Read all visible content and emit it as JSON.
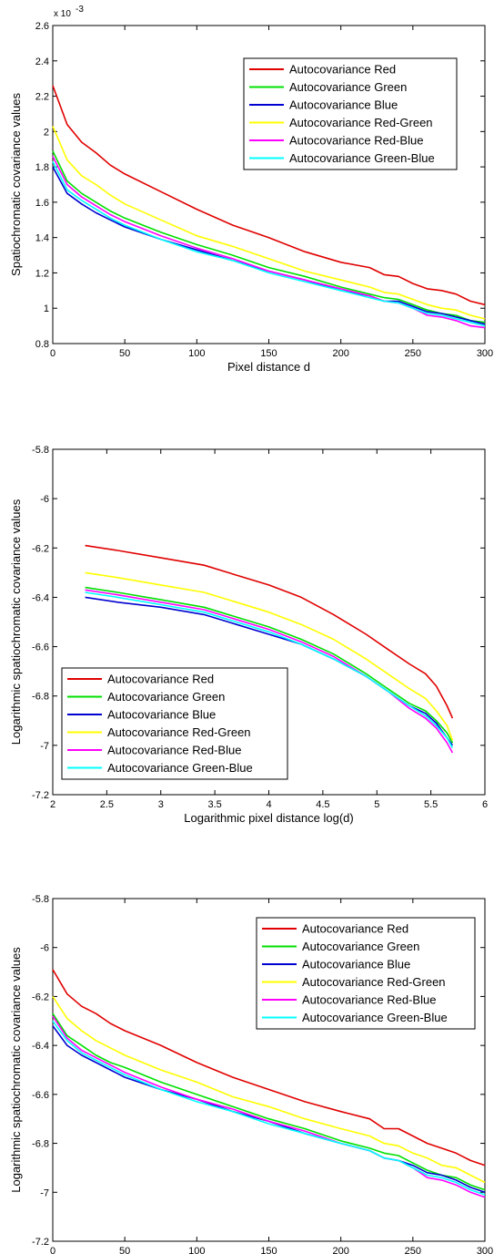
{
  "colors": {
    "Autocovariance Red": "#e00000",
    "Autocovariance Green": "#00e000",
    "Autocovariance Blue": "#0000d0",
    "Autocovariance Red-Green": "#ffff00",
    "Autocovariance Red-Blue": "#ff00ff",
    "Autocovariance Green-Blue": "#00ffff"
  },
  "chart_data": [
    {
      "type": "line",
      "xlabel": "Pixel distance d",
      "ylabel": "Spatiochromatic covariance values",
      "y_exponent_label": "x 10",
      "y_exponent_power": "-3",
      "xlim": [
        0,
        300
      ],
      "ylim": [
        0.8,
        2.6
      ],
      "xticks": [
        "0",
        "50",
        "100",
        "150",
        "200",
        "250",
        "300"
      ],
      "yticks": [
        "0.8",
        "1",
        "1.2",
        "1.4",
        "1.6",
        "1.8",
        "2",
        "2.2",
        "2.4",
        "2.6"
      ],
      "legend_position": "top-right",
      "x": [
        0,
        10,
        20,
        30,
        40,
        50,
        75,
        100,
        125,
        150,
        175,
        200,
        220,
        230,
        240,
        250,
        260,
        270,
        280,
        290,
        300
      ],
      "series": [
        {
          "name": "Autocovariance Red",
          "values": [
            2.26,
            2.04,
            1.94,
            1.88,
            1.81,
            1.76,
            1.66,
            1.56,
            1.47,
            1.4,
            1.32,
            1.26,
            1.23,
            1.19,
            1.18,
            1.14,
            1.11,
            1.1,
            1.08,
            1.04,
            1.02
          ]
        },
        {
          "name": "Autocovariance Green",
          "values": [
            1.89,
            1.72,
            1.65,
            1.6,
            1.55,
            1.51,
            1.43,
            1.36,
            1.3,
            1.23,
            1.18,
            1.12,
            1.08,
            1.06,
            1.05,
            1.02,
            0.99,
            0.97,
            0.96,
            0.93,
            0.92
          ]
        },
        {
          "name": "Autocovariance Blue",
          "values": [
            1.8,
            1.65,
            1.59,
            1.54,
            1.5,
            1.46,
            1.39,
            1.33,
            1.27,
            1.21,
            1.16,
            1.1,
            1.07,
            1.04,
            1.04,
            1.01,
            0.98,
            0.97,
            0.95,
            0.93,
            0.91
          ]
        },
        {
          "name": "Autocovariance Red-Green",
          "values": [
            2.03,
            1.84,
            1.75,
            1.7,
            1.64,
            1.59,
            1.5,
            1.41,
            1.35,
            1.28,
            1.21,
            1.16,
            1.12,
            1.09,
            1.08,
            1.05,
            1.02,
            1.0,
            0.99,
            0.96,
            0.94
          ]
        },
        {
          "name": "Autocovariance Red-Blue",
          "values": [
            1.86,
            1.7,
            1.63,
            1.58,
            1.53,
            1.49,
            1.41,
            1.34,
            1.28,
            1.21,
            1.16,
            1.11,
            1.07,
            1.04,
            1.03,
            1.0,
            0.96,
            0.95,
            0.93,
            0.9,
            0.89
          ]
        },
        {
          "name": "Autocovariance Green-Blue",
          "values": [
            1.83,
            1.67,
            1.61,
            1.56,
            1.51,
            1.47,
            1.39,
            1.32,
            1.27,
            1.2,
            1.15,
            1.1,
            1.06,
            1.04,
            1.03,
            1.0,
            0.97,
            0.96,
            0.94,
            0.92,
            0.9
          ]
        }
      ]
    },
    {
      "type": "line",
      "xlabel": "Logarithmic pixel distance log(d)",
      "ylabel": "Logarithmic spatiochromatic covariance values",
      "xlim": [
        2,
        6
      ],
      "ylim": [
        -7.2,
        -5.8
      ],
      "xticks": [
        "2",
        "2.5",
        "3",
        "3.5",
        "4",
        "4.5",
        "5",
        "5.5",
        "6"
      ],
      "yticks": [
        "-7.2",
        "-7",
        "-6.8",
        "-6.6",
        "-6.4",
        "-6.2",
        "-6",
        "-5.8"
      ],
      "legend_position": "bottom-left",
      "x": [
        2.3,
        2.6,
        3.0,
        3.4,
        3.7,
        4.0,
        4.3,
        4.6,
        4.9,
        5.1,
        5.3,
        5.45,
        5.55,
        5.65,
        5.7
      ],
      "series": [
        {
          "name": "Autocovariance Red",
          "values": [
            -6.19,
            -6.21,
            -6.24,
            -6.27,
            -6.31,
            -6.35,
            -6.4,
            -6.47,
            -6.55,
            -6.61,
            -6.67,
            -6.71,
            -6.76,
            -6.84,
            -6.89
          ]
        },
        {
          "name": "Autocovariance Green",
          "values": [
            -6.36,
            -6.38,
            -6.41,
            -6.44,
            -6.48,
            -6.52,
            -6.57,
            -6.63,
            -6.71,
            -6.77,
            -6.83,
            -6.86,
            -6.9,
            -6.95,
            -6.99
          ]
        },
        {
          "name": "Autocovariance Blue",
          "values": [
            -6.4,
            -6.42,
            -6.44,
            -6.47,
            -6.51,
            -6.55,
            -6.59,
            -6.65,
            -6.72,
            -6.78,
            -6.84,
            -6.87,
            -6.91,
            -6.97,
            -7.0
          ]
        },
        {
          "name": "Autocovariance Red-Green",
          "values": [
            -6.3,
            -6.32,
            -6.35,
            -6.38,
            -6.42,
            -6.46,
            -6.51,
            -6.57,
            -6.65,
            -6.71,
            -6.77,
            -6.81,
            -6.86,
            -6.92,
            -6.98
          ]
        },
        {
          "name": "Autocovariance Red-Blue",
          "values": [
            -6.37,
            -6.39,
            -6.42,
            -6.45,
            -6.49,
            -6.53,
            -6.58,
            -6.64,
            -6.72,
            -6.78,
            -6.85,
            -6.89,
            -6.93,
            -6.99,
            -7.03
          ]
        },
        {
          "name": "Autocovariance Green-Blue",
          "values": [
            -6.38,
            -6.4,
            -6.43,
            -6.46,
            -6.5,
            -6.54,
            -6.59,
            -6.65,
            -6.72,
            -6.78,
            -6.84,
            -6.88,
            -6.92,
            -6.97,
            -7.01
          ]
        }
      ]
    },
    {
      "type": "line",
      "xlabel": "Pixel distance d",
      "ylabel": "Logarithmic spatiochromatic covariance values",
      "xlim": [
        0,
        300
      ],
      "ylim": [
        -7.2,
        -5.8
      ],
      "xticks": [
        "0",
        "50",
        "100",
        "150",
        "200",
        "250",
        "300"
      ],
      "yticks": [
        "-7.2",
        "-7",
        "-6.8",
        "-6.6",
        "-6.4",
        "-6.2",
        "-6",
        "-5.8"
      ],
      "legend_position": "top-right",
      "x": [
        0,
        10,
        20,
        30,
        40,
        50,
        75,
        100,
        125,
        150,
        175,
        200,
        220,
        230,
        240,
        250,
        260,
        270,
        280,
        290,
        300
      ],
      "series": [
        {
          "name": "Autocovariance Red",
          "values": [
            -6.09,
            -6.19,
            -6.24,
            -6.27,
            -6.31,
            -6.34,
            -6.4,
            -6.47,
            -6.53,
            -6.58,
            -6.63,
            -6.67,
            -6.7,
            -6.74,
            -6.74,
            -6.77,
            -6.8,
            -6.82,
            -6.84,
            -6.87,
            -6.89
          ]
        },
        {
          "name": "Autocovariance Green",
          "values": [
            -6.27,
            -6.36,
            -6.4,
            -6.44,
            -6.47,
            -6.49,
            -6.55,
            -6.6,
            -6.65,
            -6.7,
            -6.74,
            -6.79,
            -6.82,
            -6.84,
            -6.85,
            -6.88,
            -6.91,
            -6.93,
            -6.94,
            -6.97,
            -6.99
          ]
        },
        {
          "name": "Autocovariance Blue",
          "values": [
            -6.32,
            -6.4,
            -6.44,
            -6.47,
            -6.5,
            -6.53,
            -6.58,
            -6.62,
            -6.67,
            -6.71,
            -6.76,
            -6.8,
            -6.83,
            -6.86,
            -6.87,
            -6.89,
            -6.92,
            -6.93,
            -6.95,
            -6.98,
            -7.0
          ]
        },
        {
          "name": "Autocovariance Red-Green",
          "values": [
            -6.2,
            -6.29,
            -6.34,
            -6.38,
            -6.41,
            -6.44,
            -6.5,
            -6.55,
            -6.61,
            -6.65,
            -6.7,
            -6.74,
            -6.77,
            -6.8,
            -6.81,
            -6.84,
            -6.86,
            -6.89,
            -6.9,
            -6.93,
            -6.96
          ]
        },
        {
          "name": "Autocovariance Red-Blue",
          "values": [
            -6.28,
            -6.37,
            -6.42,
            -6.45,
            -6.48,
            -6.51,
            -6.57,
            -6.62,
            -6.66,
            -6.71,
            -6.75,
            -6.8,
            -6.83,
            -6.86,
            -6.87,
            -6.9,
            -6.94,
            -6.95,
            -6.97,
            -7.0,
            -7.02
          ]
        },
        {
          "name": "Autocovariance Green-Blue",
          "values": [
            -6.3,
            -6.38,
            -6.43,
            -6.46,
            -6.49,
            -6.52,
            -6.58,
            -6.63,
            -6.67,
            -6.72,
            -6.76,
            -6.8,
            -6.83,
            -6.86,
            -6.87,
            -6.9,
            -6.93,
            -6.94,
            -6.96,
            -6.99,
            -7.01
          ]
        }
      ]
    }
  ]
}
